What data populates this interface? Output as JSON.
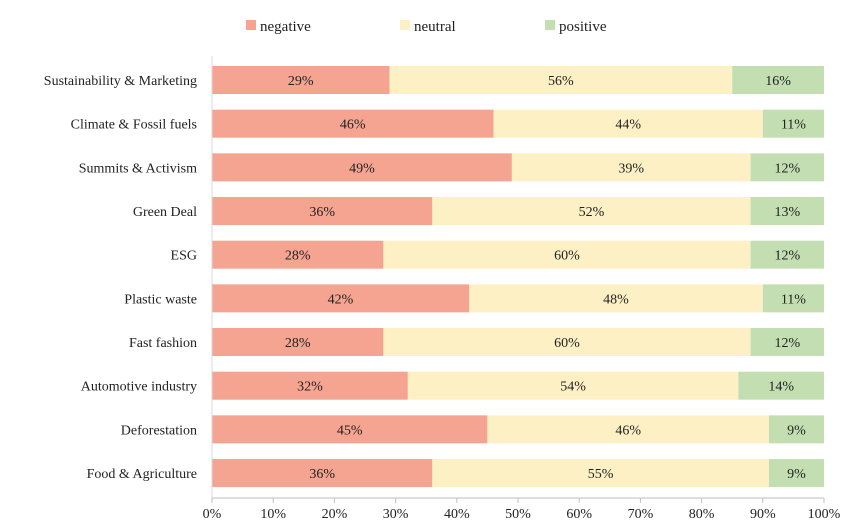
{
  "chart_data": {
    "type": "bar",
    "orientation": "horizontal",
    "stacked": true,
    "title": "",
    "xlabel": "",
    "ylabel": "",
    "xlim": [
      0,
      100
    ],
    "x_ticks": [
      "0%",
      "10%",
      "20%",
      "30%",
      "40%",
      "50%",
      "60%",
      "70%",
      "80%",
      "90%",
      "100%"
    ],
    "legend_position": "top",
    "grid": false,
    "categories": [
      "Sustainability & Marketing",
      "Climate & Fossil fuels",
      "Summits & Activism",
      "Green Deal",
      "ESG",
      "Plastic waste",
      "Fast fashion",
      "Automotive industry",
      "Deforestation",
      "Food & Agriculture"
    ],
    "series": [
      {
        "name": "negative",
        "color": "#F4A491",
        "values": [
          29,
          46,
          49,
          36,
          28,
          42,
          28,
          32,
          45,
          36
        ],
        "labels": [
          "29%",
          "46%",
          "49%",
          "36%",
          "28%",
          "42%",
          "28%",
          "32%",
          "45%",
          "36%"
        ]
      },
      {
        "name": "neutral",
        "color": "#FDF0C4",
        "values": [
          56,
          44,
          39,
          52,
          60,
          48,
          60,
          54,
          46,
          55
        ],
        "labels": [
          "56%",
          "44%",
          "39%",
          "52%",
          "60%",
          "48%",
          "60%",
          "54%",
          "46%",
          "55%"
        ]
      },
      {
        "name": "positive",
        "color": "#C3DFB2",
        "values": [
          16,
          11,
          12,
          13,
          12,
          11,
          12,
          14,
          9,
          9
        ],
        "labels": [
          "16%",
          "11%",
          "12%",
          "13%",
          "12%",
          "11%",
          "12%",
          "14%",
          "9%",
          "9%"
        ]
      }
    ]
  }
}
